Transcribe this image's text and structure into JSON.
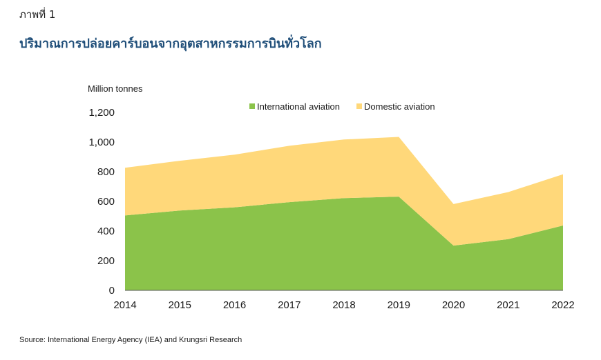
{
  "figure_label": "ภาพที่ 1",
  "title": "ปริมาณการปล่อยคาร์บอนจากอุตสาหกรรมการบินทั่วโลก",
  "source": "Source: International Energy Agency (IEA) and Krungsri Research",
  "chart_data": {
    "type": "area",
    "stacked": true,
    "unit_label": "Million tonnes",
    "x": [
      "2014",
      "2015",
      "2016",
      "2017",
      "2018",
      "2019",
      "2020",
      "2021",
      "2022"
    ],
    "series": [
      {
        "name": "International aviation",
        "color": "#8bc34a",
        "values": [
          505,
          538,
          560,
          595,
          622,
          632,
          302,
          345,
          437
        ]
      },
      {
        "name": "Domestic aviation",
        "color": "#ffd87a",
        "values": [
          322,
          336,
          355,
          380,
          395,
          403,
          280,
          318,
          346
        ]
      }
    ],
    "ylim": [
      0,
      1200
    ],
    "yticks": [
      "0",
      "200",
      "400",
      "600",
      "800",
      "1,000",
      "1,200"
    ],
    "ytick_values": [
      0,
      200,
      400,
      600,
      800,
      1000,
      1200
    ],
    "grid": false,
    "legend_position": "top-center"
  }
}
